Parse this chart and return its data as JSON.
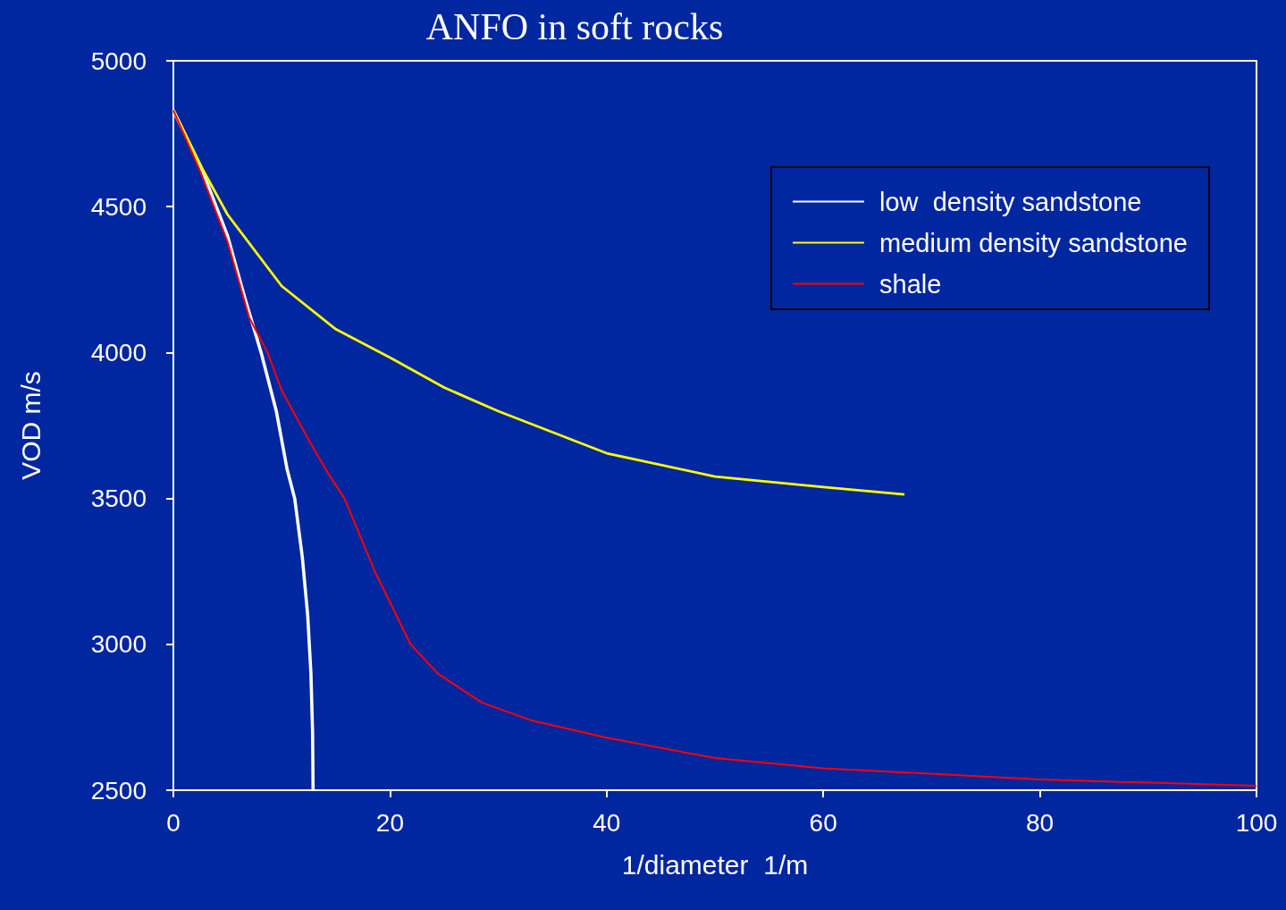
{
  "chart_data": {
    "type": "line",
    "title": "ANFO in soft rocks",
    "xlabel": "1/diameter  1/m",
    "ylabel": "VOD m/s",
    "xlim": [
      0,
      100
    ],
    "xticks": [
      0,
      20,
      40,
      60,
      80,
      100
    ],
    "ylim": [
      2500,
      5000
    ],
    "yticks": [
      2500,
      3000,
      3500,
      4000,
      4500,
      5000
    ],
    "grid": false,
    "legend": "top right",
    "marker": "none",
    "line_style": "solid",
    "series": [
      {
        "name": "low  density sandstone",
        "color": "#ffffff",
        "x": [
          0,
          2.5,
          5,
          6.5,
          8.1,
          9.5,
          10.5,
          11.2,
          11.9,
          12.4,
          12.7,
          12.85,
          12.9
        ],
        "values": [
          4830,
          4640,
          4400,
          4200,
          4000,
          3800,
          3600,
          3500,
          3300,
          3100,
          2900,
          2700,
          2500
        ]
      },
      {
        "name": "medium density sandstone",
        "color": "#ffff00",
        "x": [
          0,
          2.5,
          5,
          10,
          15,
          20,
          25,
          30,
          40,
          50,
          60,
          67.5
        ],
        "values": [
          4830,
          4642,
          4473,
          4228,
          4080,
          3983,
          3880,
          3799,
          3655,
          3575,
          3539,
          3514
        ]
      },
      {
        "name": "shale",
        "color": "#ff0000",
        "x": [
          0,
          2.5,
          5,
          7,
          8.7,
          10,
          12.5,
          14.3,
          15.8,
          18.6,
          21.9,
          24.4,
          28.5,
          33,
          40,
          50,
          60,
          80,
          100
        ],
        "values": [
          4830,
          4620,
          4380,
          4120,
          4000,
          3870,
          3700,
          3585,
          3500,
          3250,
          3000,
          2900,
          2800,
          2740,
          2680,
          2610,
          2575,
          2537,
          2515
        ]
      }
    ]
  }
}
